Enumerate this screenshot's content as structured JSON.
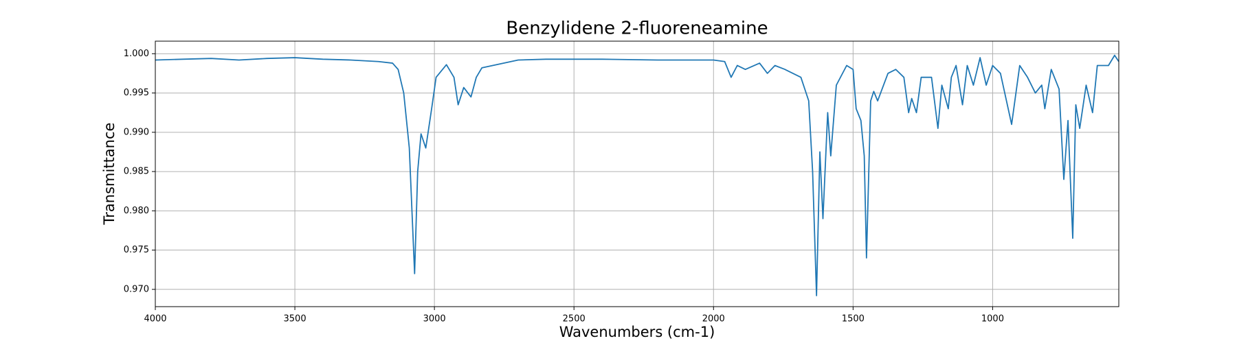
{
  "chart_data": {
    "type": "line",
    "title": "Benzylidene 2-fluoreneamine",
    "xlabel": "Wavenumbers (cm-1)",
    "ylabel": "Transmittance",
    "color": "#1f77b4",
    "grid": true,
    "xlim": [
      4000,
      548
    ],
    "ylim": [
      0.9678,
      1.0016
    ],
    "xticks": [
      4000,
      3500,
      3000,
      2500,
      2000,
      1500,
      1000
    ],
    "yticks": [
      {
        "value": 1,
        "label": "1.000"
      },
      0.995,
      {
        "value": 0.99,
        "label": "0.990"
      },
      0.985,
      {
        "value": 0.98,
        "label": "0.980"
      },
      0.975,
      {
        "value": 0.97,
        "label": "0.970"
      }
    ],
    "x": [
      4000,
      3900,
      3800,
      3700,
      3600,
      3500,
      3400,
      3300,
      3200,
      3150,
      3130,
      3110,
      3090,
      3071,
      3060,
      3048,
      3031,
      3010,
      2994,
      2957,
      2930,
      2915,
      2895,
      2880,
      2869,
      2850,
      2830,
      2700,
      2600,
      2400,
      2200,
      2000,
      1960,
      1937,
      1915,
      1886,
      1835,
      1807,
      1780,
      1744,
      1687,
      1659,
      1645,
      1631,
      1619,
      1608,
      1591,
      1580,
      1560,
      1523,
      1500,
      1489,
      1472,
      1460,
      1452,
      1437,
      1426,
      1412,
      1375,
      1347,
      1318,
      1301,
      1290,
      1273,
      1256,
      1219,
      1196,
      1182,
      1159,
      1148,
      1131,
      1108,
      1091,
      1069,
      1045,
      1023,
      1000,
      972,
      932,
      903,
      875,
      847,
      824,
      813,
      790,
      762,
      745,
      730,
      713,
      702,
      688,
      665,
      642,
      625,
      585,
      563,
      548
    ],
    "values": [
      0.9992,
      0.9993,
      0.9994,
      0.9992,
      0.9994,
      0.9995,
      0.9993,
      0.9992,
      0.999,
      0.9988,
      0.998,
      0.995,
      0.988,
      0.972,
      0.985,
      0.9898,
      0.988,
      0.993,
      0.997,
      0.9986,
      0.997,
      0.9935,
      0.9957,
      0.995,
      0.9945,
      0.997,
      0.9982,
      0.9992,
      0.9993,
      0.9993,
      0.9992,
      0.9992,
      0.999,
      0.997,
      0.9985,
      0.998,
      0.9988,
      0.9975,
      0.9985,
      0.998,
      0.997,
      0.994,
      0.985,
      0.9692,
      0.9875,
      0.979,
      0.9925,
      0.987,
      0.996,
      0.9985,
      0.998,
      0.993,
      0.9915,
      0.987,
      0.974,
      0.994,
      0.9952,
      0.994,
      0.9975,
      0.998,
      0.997,
      0.9925,
      0.9943,
      0.9925,
      0.997,
      0.997,
      0.9905,
      0.996,
      0.993,
      0.997,
      0.9985,
      0.9935,
      0.9985,
      0.996,
      0.9995,
      0.996,
      0.9985,
      0.9975,
      0.991,
      0.9985,
      0.997,
      0.995,
      0.996,
      0.993,
      0.998,
      0.9955,
      0.984,
      0.9915,
      0.9765,
      0.9935,
      0.9905,
      0.996,
      0.9925,
      0.9985,
      0.9985,
      0.9998,
      0.999
    ]
  }
}
